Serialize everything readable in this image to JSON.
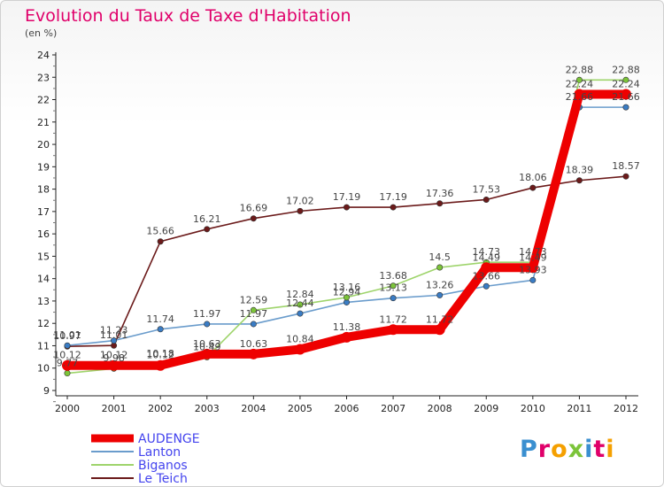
{
  "title": "Evolution du Taux de Taxe d'Habitation",
  "unit": "(en %)",
  "logo": {
    "text": "Proxiti"
  },
  "chart_data": {
    "type": "line",
    "title": "Evolution du Taux de Taxe d'Habitation",
    "ylabel": "(en %)",
    "xlabel": "",
    "x": [
      "2000",
      "2001",
      "2002",
      "2003",
      "2004",
      "2005",
      "2006",
      "2007",
      "2008",
      "2009",
      "2010",
      "2011",
      "2012"
    ],
    "yticks": [
      9,
      10,
      11,
      12,
      13,
      14,
      15,
      16,
      17,
      18,
      19,
      20,
      21,
      22,
      23,
      24
    ],
    "ylim": [
      9,
      24
    ],
    "grid": false,
    "legend": "bottom-left",
    "series": [
      {
        "name": "Le Teich",
        "color": "#6b1a1a",
        "marker": "#6b1a1a",
        "values": [
          10.97,
          11.01,
          15.66,
          16.21,
          16.69,
          17.02,
          17.19,
          17.19,
          17.36,
          17.53,
          18.06,
          18.39,
          18.57
        ]
      },
      {
        "name": "Lanton",
        "color": "#6a9ccc",
        "marker": "#3a7cc4",
        "values": [
          11.01,
          11.23,
          11.74,
          11.97,
          11.97,
          12.44,
          12.94,
          13.13,
          13.26,
          13.66,
          13.93,
          21.66,
          21.66
        ]
      },
      {
        "name": "Biganos",
        "color": "#9ed46b",
        "marker": "#7cc43a",
        "values": [
          9.77,
          9.98,
          10.18,
          10.49,
          12.59,
          12.84,
          13.16,
          13.68,
          14.5,
          14.73,
          14.73,
          22.88,
          22.88
        ]
      },
      {
        "name": "AUDENGE",
        "color": "#ee0000",
        "marker": "#ee0000",
        "values": [
          10.12,
          10.12,
          10.12,
          10.63,
          10.63,
          10.84,
          11.38,
          11.72,
          11.72,
          14.49,
          14.49,
          22.24,
          22.24
        ]
      }
    ],
    "legend_order": [
      "AUDENGE",
      "Lanton",
      "Biganos",
      "Le Teich"
    ],
    "legend_colors": {
      "AUDENGE": "#4444ee",
      "Lanton": "#4444ee",
      "Biganos": "#4444ee",
      "Le Teich": "#4444ee"
    }
  }
}
